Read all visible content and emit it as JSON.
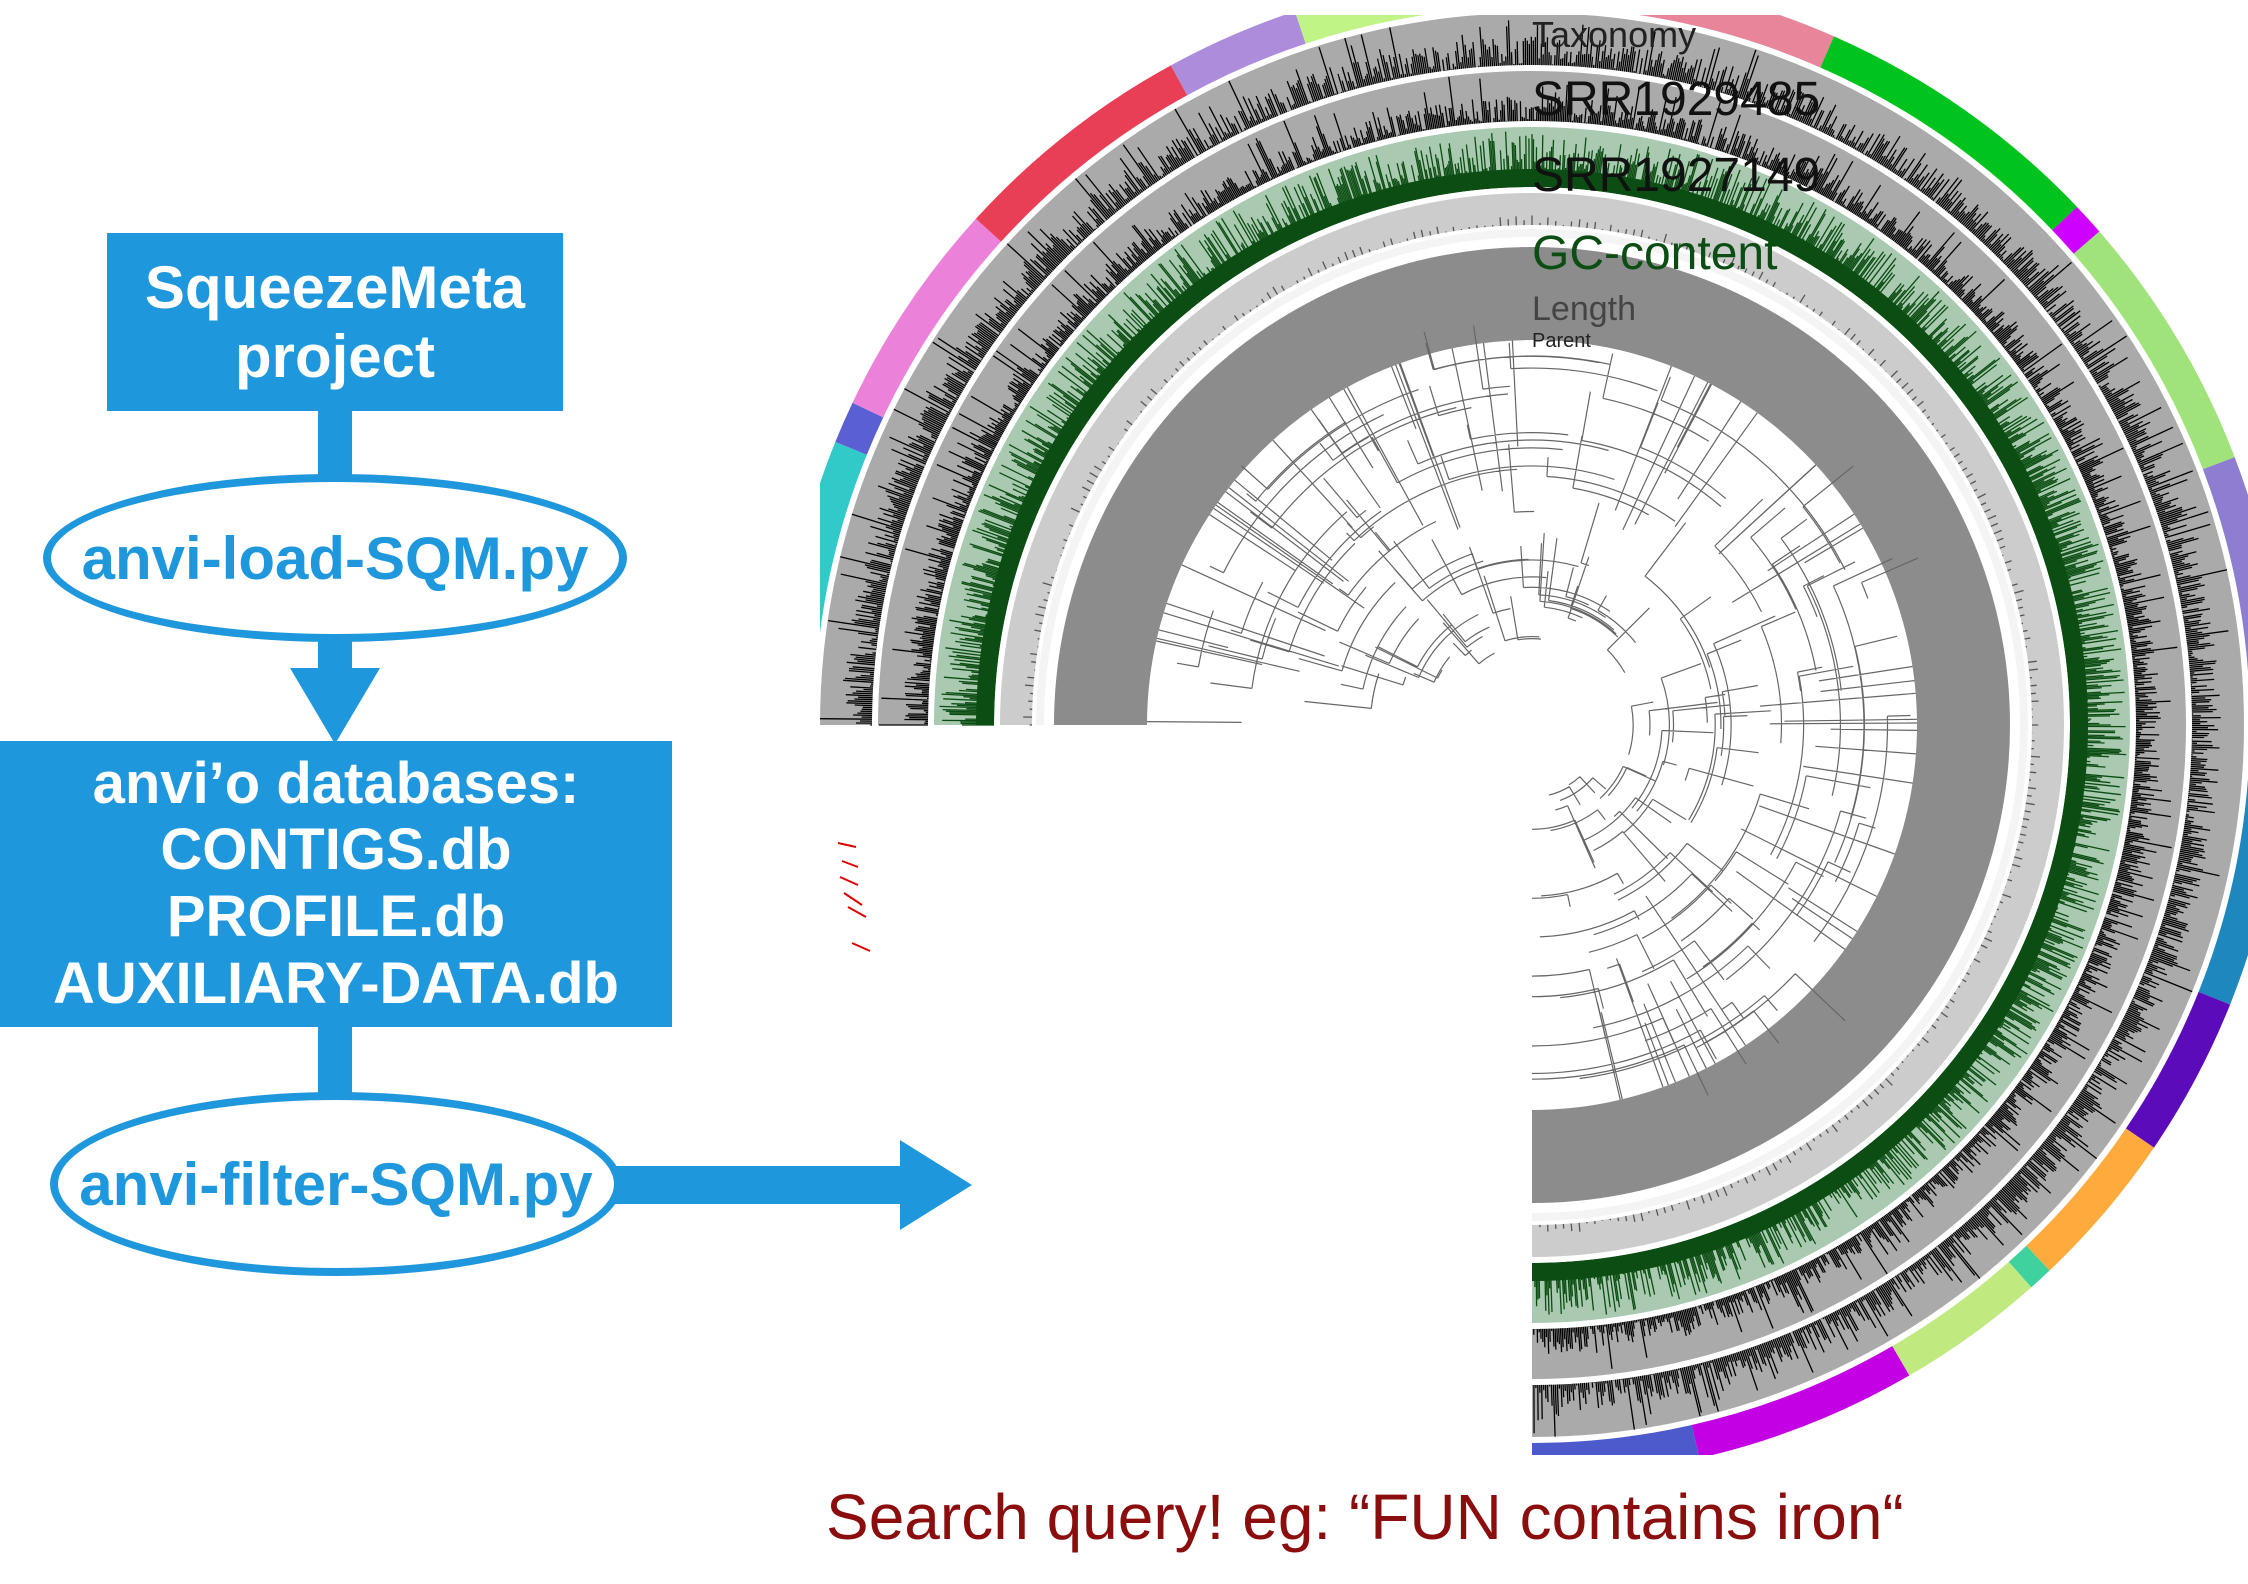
{
  "flowchart": {
    "project_box": {
      "line1": "SqueezeMeta",
      "line2": "project"
    },
    "load_script": "anvi-load-SQM.py",
    "databases_box": {
      "title": "anvi’o databases:",
      "items": [
        "CONTIGS.db",
        "PROFILE.db",
        "AUXILIARY-DATA.db"
      ]
    },
    "filter_script": "anvi-filter-SQM.py",
    "colors": {
      "primary": "#1f97dc"
    }
  },
  "radial_view": {
    "layers": [
      "Taxonomy",
      "SRR1929485",
      "SRR1927149",
      "GC-content",
      "Length",
      "Parent"
    ],
    "colors": {
      "coverage_background": "#aaaaaa",
      "coverage_bars": "#000000",
      "gc_background": "#a9c9b0",
      "gc_bars": "#0b4d12",
      "length_background": "#cccccc",
      "tree_ring": "#8c8c8c",
      "search_highlight": "#e00000",
      "taxonomy_palette": [
        "#fad52f",
        "#9fd2f2",
        "#32c9c9",
        "#5a5fd2",
        "#ec81da",
        "#e93f56",
        "#ad8ddb",
        "#c1f486",
        "#e48be0",
        "#e8859b",
        "#00c31d",
        "#ce00ff",
        "#a0e37b",
        "#8e7dd0",
        "#1e88be",
        "#5b0bba",
        "#ffaa3c",
        "#3fd19e",
        "#c0ea7f",
        "#c300e3",
        "#4d5acb",
        "#ff4ad6",
        "#a33eff",
        "#cbaeff",
        "#c7d22b",
        "#8ab100",
        "#d61253",
        "#6dcf5c",
        "#f5b16b"
      ]
    }
  },
  "search_caption": "Search query! eg: “FUN contains iron“"
}
